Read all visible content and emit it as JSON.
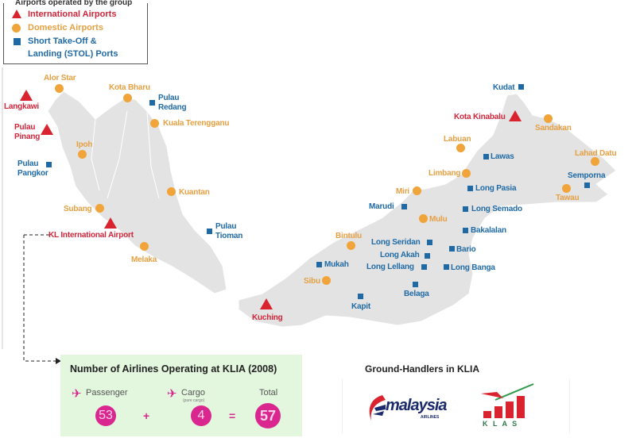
{
  "legend": {
    "title": "Airports operated by the group",
    "items": [
      {
        "label": "International Airports",
        "marker": "red-triangle",
        "color": "#d9232e"
      },
      {
        "label": "Domestic Airports",
        "marker": "orange-circle",
        "color": "#f0a43a"
      },
      {
        "label": "Short Take-Off & Landing (STOL) Ports",
        "line1": "Short Take-Off &",
        "line2": "Landing (STOL) Ports",
        "marker": "blue-square",
        "color": "#1f6aa5"
      }
    ]
  },
  "places": {
    "alor_star": "Alor Star",
    "langkawi": "Langkawi",
    "pulau_pinang_1": "Pulau",
    "pulau_pinang_2": "Pinang",
    "pulau_pangkor_1": "Pulau",
    "pulau_pangkor_2": "Pangkor",
    "kota_bharu": "Kota Bharu",
    "pulau_redang_1": "Pulau",
    "pulau_redang_2": "Redang",
    "kuala_terengganu": "Kuala Terengganu",
    "ipoh": "Ipoh",
    "kuantan": "Kuantan",
    "subang": "Subang",
    "klia": "KL International Airport",
    "pulau_tioman_1": "Pulau",
    "pulau_tioman_2": "Tioman",
    "melaka": "Melaka",
    "kudat": "Kudat",
    "kota_kinabalu": "Kota Kinabalu",
    "sandakan": "Sandakan",
    "labuan": "Labuan",
    "lawas": "Lawas",
    "lahad_datu": "Lahad Datu",
    "limbang": "Limbang",
    "semporna": "Semporna",
    "tawau": "Tawau",
    "long_pasia": "Long Pasia",
    "miri": "Miri",
    "marudi": "Marudi",
    "long_semado": "Long Semado",
    "mulu": "Mulu",
    "bakalalan": "Bakalalan",
    "bintulu": "Bintulu",
    "long_seridan": "Long Seridan",
    "bario": "Bario",
    "long_akah": "Long Akah",
    "mukah": "Mukah",
    "long_lellang": "Long Lellang",
    "long_banga": "Long Banga",
    "sibu": "Sibu",
    "belaga": "Belaga",
    "kapit": "Kapit",
    "kuching": "Kuching"
  },
  "stats": {
    "title": "Number of Airlines Operating at KLIA (2008)",
    "passenger_label": "Passenger",
    "passenger_value": "53",
    "cargo_label": "Cargo",
    "cargo_note": "(pure cargo)",
    "cargo_value": "4",
    "total_label": "Total",
    "total_value": "57",
    "plus": "+",
    "equals": "=",
    "accent": "#d9278f"
  },
  "handlers": {
    "title": "Ground-Handlers in KLIA",
    "logos": [
      {
        "name": "Malaysia Airlines",
        "text": "malaysia",
        "sub": "AIRLINES"
      },
      {
        "name": "KLAS",
        "text": "K L A S"
      }
    ]
  },
  "colors": {
    "land": "#e3e3e3",
    "international": "#d9232e",
    "domestic": "#f0a43a",
    "stol": "#1f6aa5"
  }
}
